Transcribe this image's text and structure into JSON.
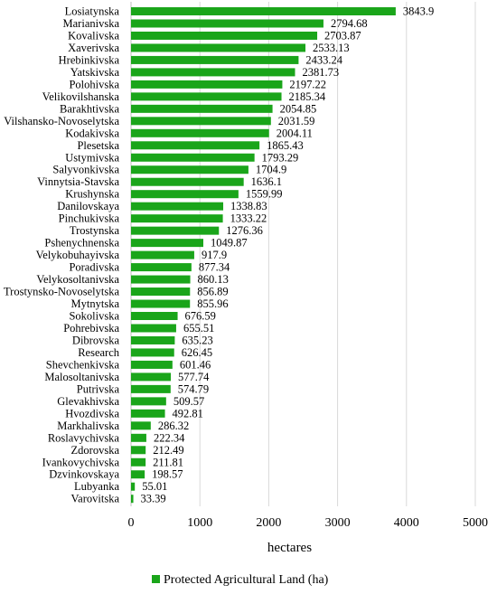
{
  "chart_data": {
    "type": "bar",
    "orientation": "horizontal",
    "categories": [
      "Losiatynska",
      "Marianivska",
      "Kovalivska",
      "Xaverivska",
      "Hrebinkivska",
      "Yatskivska",
      "Polohivska",
      "Velikovilshanska",
      "Barakhtivska",
      "Vilshansko-Novoselytska",
      "Kodakivska",
      "Plesetska",
      "Ustymivska",
      "Salyvonkivska",
      "Vinnytsia-Stavska",
      "Krushynska",
      "Danilovskaya",
      "Pinchukivska",
      "Trostynska",
      "Pshenychnenska",
      "Velykobuhayivska",
      "Poradivska",
      "Velykosoltanivska",
      "Trostynsko-Novoselytska",
      "Mytnytska",
      "Sokolivska",
      "Pohrebivska",
      "Dibrovska",
      "Research",
      "Shevchenkivska",
      "Malosoltanivska",
      "Putrivska",
      "Glevakhivska",
      "Hvozdivska",
      "Markhalivska",
      "Roslavychivska",
      "Zdorovska",
      "Ivankovychivska",
      "Dzvinkovskaya",
      "Lubyanka",
      "Varovitska"
    ],
    "series": [
      {
        "name": "Protected Agricultural Land (ha)",
        "color": "#1aa51a",
        "values": [
          3843.9,
          2794.68,
          2703.87,
          2533.13,
          2433.24,
          2381.73,
          2197.22,
          2185.34,
          2054.85,
          2031.59,
          2004.11,
          1865.43,
          1793.29,
          1704.9,
          1636.1,
          1559.99,
          1338.83,
          1333.22,
          1276.36,
          1049.87,
          917.9,
          877.34,
          860.13,
          856.89,
          855.96,
          676.59,
          655.51,
          635.23,
          626.45,
          601.46,
          577.74,
          574.79,
          509.57,
          492.81,
          286.32,
          222.34,
          212.49,
          211.81,
          198.57,
          55.01,
          33.39
        ]
      }
    ],
    "xlabel": "hectares",
    "xlim": [
      0,
      5000
    ],
    "xticks": [
      "0",
      "1000",
      "2000",
      "3000",
      "4000",
      "5000"
    ],
    "grid": "vertical",
    "legend_position": "bottom"
  }
}
